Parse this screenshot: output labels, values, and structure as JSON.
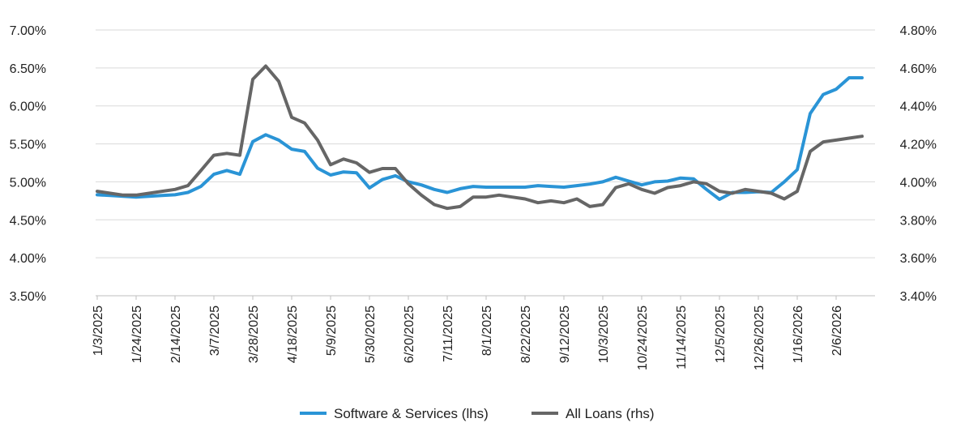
{
  "chart_data": {
    "type": "line",
    "title": "",
    "xlabel": "",
    "ylabel": "",
    "x_tick_labels": [
      "1/3/2025",
      "1/24/2025",
      "2/14/2025",
      "3/7/2025",
      "3/28/2025",
      "4/18/2025",
      "5/9/2025",
      "5/30/2025",
      "6/20/2025",
      "7/11/2025",
      "8/1/2025",
      "8/22/2025",
      "9/12/2025",
      "10/3/2025",
      "10/24/2025",
      "11/14/2025",
      "12/5/2025",
      "12/26/2025",
      "1/16/2026",
      "2/6/2026"
    ],
    "y_left": {
      "ylim": [
        3.5,
        7.0
      ],
      "tick_labels": [
        "7.00%",
        "6.50%",
        "6.00%",
        "5.50%",
        "5.00%",
        "4.50%",
        "4.00%",
        "3.50%"
      ],
      "tick_values": [
        7.0,
        6.5,
        6.0,
        5.5,
        5.0,
        4.5,
        4.0,
        3.5
      ]
    },
    "y_right": {
      "ylim": [
        3.4,
        4.8
      ],
      "tick_labels": [
        "4.80%",
        "4.60%",
        "4.40%",
        "4.20%",
        "4.00%",
        "3.80%",
        "3.60%",
        "3.40%"
      ],
      "tick_values": [
        4.8,
        4.6,
        4.4,
        4.2,
        4.0,
        3.8,
        3.6,
        3.4
      ]
    },
    "grid": true,
    "legend_position": "bottom",
    "series": [
      {
        "name": "Software & Services (lhs)",
        "axis": "left",
        "color": "#2a94d6",
        "x": [
          "1/3/2025",
          "1/10/2025",
          "1/17/2025",
          "1/24/2025",
          "1/31/2025",
          "2/7/2025",
          "2/14/2025",
          "2/21/2025",
          "2/28/2025",
          "3/7/2025",
          "3/14/2025",
          "3/21/2025",
          "3/28/2025",
          "4/4/2025",
          "4/11/2025",
          "4/18/2025",
          "4/25/2025",
          "5/2/2025",
          "5/9/2025",
          "5/16/2025",
          "5/23/2025",
          "5/30/2025",
          "6/6/2025",
          "6/13/2025",
          "6/20/2025",
          "6/27/2025",
          "7/4/2025",
          "7/11/2025",
          "7/18/2025",
          "7/25/2025",
          "8/1/2025",
          "8/8/2025",
          "8/15/2025",
          "8/22/2025",
          "8/29/2025",
          "9/5/2025",
          "9/12/2025",
          "9/19/2025",
          "9/26/2025",
          "10/3/2025",
          "10/10/2025",
          "10/17/2025",
          "10/24/2025",
          "10/31/2025",
          "11/7/2025",
          "11/14/2025",
          "11/21/2025",
          "11/28/2025",
          "12/5/2025",
          "12/12/2025",
          "12/19/2025",
          "12/26/2025",
          "1/2/2026",
          "1/9/2026",
          "1/16/2026",
          "1/23/2026",
          "1/30/2026",
          "2/6/2026",
          "2/13/2026",
          "2/20/2026"
        ],
        "values": [
          4.83,
          4.82,
          4.81,
          4.8,
          4.81,
          4.82,
          4.83,
          4.86,
          4.94,
          5.1,
          5.15,
          5.1,
          5.53,
          5.62,
          5.55,
          5.43,
          5.4,
          5.18,
          5.09,
          5.13,
          5.12,
          4.92,
          5.03,
          5.08,
          5.0,
          4.96,
          4.9,
          4.86,
          4.91,
          4.94,
          4.93,
          4.93,
          4.93,
          4.93,
          4.95,
          4.94,
          4.93,
          4.95,
          4.97,
          5.0,
          5.06,
          5.01,
          4.96,
          5.0,
          5.01,
          5.05,
          5.04,
          4.9,
          4.77,
          4.86,
          4.86,
          4.87,
          4.86,
          5.0,
          5.16,
          5.9,
          6.15,
          6.22,
          6.37,
          6.37
        ]
      },
      {
        "name": "All Loans (rhs)",
        "axis": "right",
        "color": "#666666",
        "x": [
          "1/3/2025",
          "1/10/2025",
          "1/17/2025",
          "1/24/2025",
          "1/31/2025",
          "2/7/2025",
          "2/14/2025",
          "2/21/2025",
          "2/28/2025",
          "3/7/2025",
          "3/14/2025",
          "3/21/2025",
          "3/28/2025",
          "4/4/2025",
          "4/11/2025",
          "4/18/2025",
          "4/25/2025",
          "5/2/2025",
          "5/9/2025",
          "5/16/2025",
          "5/23/2025",
          "5/30/2025",
          "6/6/2025",
          "6/13/2025",
          "6/20/2025",
          "6/27/2025",
          "7/4/2025",
          "7/11/2025",
          "7/18/2025",
          "7/25/2025",
          "8/1/2025",
          "8/8/2025",
          "8/15/2025",
          "8/22/2025",
          "8/29/2025",
          "9/5/2025",
          "9/12/2025",
          "9/19/2025",
          "9/26/2025",
          "10/3/2025",
          "10/10/2025",
          "10/17/2025",
          "10/24/2025",
          "10/31/2025",
          "11/7/2025",
          "11/14/2025",
          "11/21/2025",
          "11/28/2025",
          "12/5/2025",
          "12/12/2025",
          "12/19/2025",
          "12/26/2025",
          "1/2/2026",
          "1/9/2026",
          "1/16/2026",
          "1/23/2026",
          "1/30/2026",
          "2/6/2026",
          "2/13/2026",
          "2/20/2026"
        ],
        "values": [
          3.95,
          3.94,
          3.93,
          3.93,
          3.94,
          3.95,
          3.96,
          3.98,
          4.06,
          4.14,
          4.15,
          4.14,
          4.54,
          4.61,
          4.53,
          4.34,
          4.31,
          4.22,
          4.09,
          4.12,
          4.1,
          4.05,
          4.07,
          4.07,
          3.99,
          3.93,
          3.88,
          3.86,
          3.87,
          3.92,
          3.92,
          3.93,
          3.92,
          3.91,
          3.89,
          3.9,
          3.89,
          3.91,
          3.87,
          3.88,
          3.97,
          3.99,
          3.96,
          3.94,
          3.97,
          3.98,
          4.0,
          3.99,
          3.95,
          3.94,
          3.96,
          3.95,
          3.94,
          3.91,
          3.95,
          4.16,
          4.21,
          4.22,
          4.23,
          4.24
        ]
      }
    ]
  }
}
